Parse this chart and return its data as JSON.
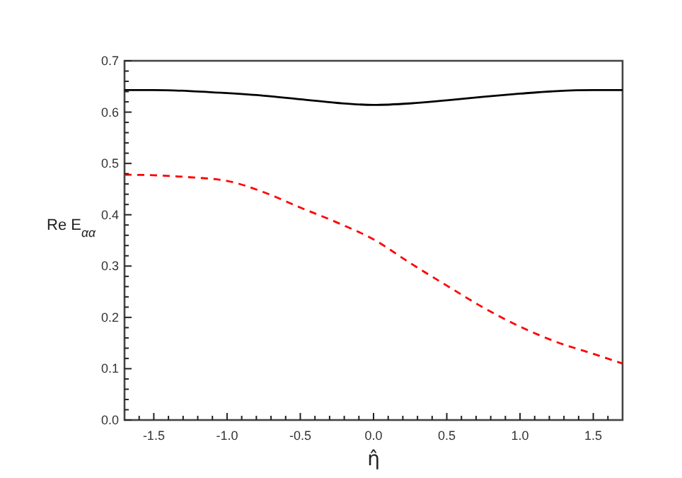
{
  "chart_data": {
    "type": "line",
    "xlabel": "η̂",
    "ylabel": "Re E$_{αα}$",
    "xlim": [
      -1.7,
      1.7
    ],
    "ylim": [
      0,
      0.7
    ],
    "xticks": [
      {
        "value": -1.6,
        "label": null
      },
      {
        "value": -1.5,
        "label": "-1.5"
      },
      {
        "value": -1.4,
        "label": null
      },
      {
        "value": -1.3,
        "label": null
      },
      {
        "value": -1.2,
        "label": null
      },
      {
        "value": -1.1,
        "label": null
      },
      {
        "value": -1.0,
        "label": "-1.0"
      },
      {
        "value": -0.9,
        "label": null
      },
      {
        "value": -0.8,
        "label": null
      },
      {
        "value": -0.7,
        "label": null
      },
      {
        "value": -0.6,
        "label": null
      },
      {
        "value": -0.5,
        "label": "-0.5"
      },
      {
        "value": -0.4,
        "label": null
      },
      {
        "value": -0.3,
        "label": null
      },
      {
        "value": -0.2,
        "label": null
      },
      {
        "value": -0.1,
        "label": null
      },
      {
        "value": 0,
        "label": "0.0"
      },
      {
        "value": 0.1,
        "label": null
      },
      {
        "value": 0.2,
        "label": null
      },
      {
        "value": 0.3,
        "label": null
      },
      {
        "value": 0.4,
        "label": null
      },
      {
        "value": 0.5,
        "label": "0.5"
      },
      {
        "value": 0.6,
        "label": null
      },
      {
        "value": 0.7,
        "label": null
      },
      {
        "value": 0.8,
        "label": null
      },
      {
        "value": 0.9,
        "label": null
      },
      {
        "value": 1.0,
        "label": "1.0"
      },
      {
        "value": 1.1,
        "label": null
      },
      {
        "value": 1.2,
        "label": null
      },
      {
        "value": 1.3,
        "label": null
      },
      {
        "value": 1.4,
        "label": null
      },
      {
        "value": 1.5,
        "label": "1.5"
      },
      {
        "value": 1.6,
        "label": null
      }
    ],
    "yticks": [
      {
        "value": 0,
        "label": "0.0"
      },
      {
        "value": 0.02,
        "label": null
      },
      {
        "value": 0.04,
        "label": null
      },
      {
        "value": 0.06,
        "label": null
      },
      {
        "value": 0.08,
        "label": null
      },
      {
        "value": 0.1,
        "label": "0.1"
      },
      {
        "value": 0.12,
        "label": null
      },
      {
        "value": 0.14,
        "label": null
      },
      {
        "value": 0.16,
        "label": null
      },
      {
        "value": 0.18,
        "label": null
      },
      {
        "value": 0.2,
        "label": "0.2"
      },
      {
        "value": 0.22,
        "label": null
      },
      {
        "value": 0.24,
        "label": null
      },
      {
        "value": 0.26,
        "label": null
      },
      {
        "value": 0.28,
        "label": null
      },
      {
        "value": 0.3,
        "label": "0.3"
      },
      {
        "value": 0.32,
        "label": null
      },
      {
        "value": 0.34,
        "label": null
      },
      {
        "value": 0.36,
        "label": null
      },
      {
        "value": 0.38,
        "label": null
      },
      {
        "value": 0.4,
        "label": "0.4"
      },
      {
        "value": 0.42,
        "label": null
      },
      {
        "value": 0.44,
        "label": null
      },
      {
        "value": 0.46,
        "label": null
      },
      {
        "value": 0.48,
        "label": null
      },
      {
        "value": 0.5,
        "label": "0.5"
      },
      {
        "value": 0.52,
        "label": null
      },
      {
        "value": 0.54,
        "label": null
      },
      {
        "value": 0.56,
        "label": null
      },
      {
        "value": 0.58,
        "label": null
      },
      {
        "value": 0.6,
        "label": "0.6"
      },
      {
        "value": 0.62,
        "label": null
      },
      {
        "value": 0.64,
        "label": null
      },
      {
        "value": 0.66,
        "label": null
      },
      {
        "value": 0.68,
        "label": null
      },
      {
        "value": 0.7,
        "label": "0.7"
      }
    ],
    "x": [
      -1.7,
      -1.5,
      -1.25,
      -1.0,
      -0.75,
      -0.5,
      -0.25,
      0,
      0.25,
      0.5,
      0.75,
      1.0,
      1.25,
      1.5,
      1.7
    ],
    "series": [
      {
        "color": "#000000",
        "line_style": "solid",
        "values": [
          0.643,
          0.643,
          0.641,
          0.637,
          0.632,
          0.625,
          0.618,
          0.614,
          0.617,
          0.623,
          0.63,
          0.636,
          0.641,
          0.643,
          0.643
        ]
      },
      {
        "color": "#ff0000",
        "line_style": "dashed",
        "values": [
          0.478,
          0.477,
          0.473,
          0.466,
          0.444,
          0.414,
          0.385,
          0.352,
          0.306,
          0.262,
          0.219,
          0.182,
          0.152,
          0.129,
          0.11
        ]
      }
    ]
  }
}
